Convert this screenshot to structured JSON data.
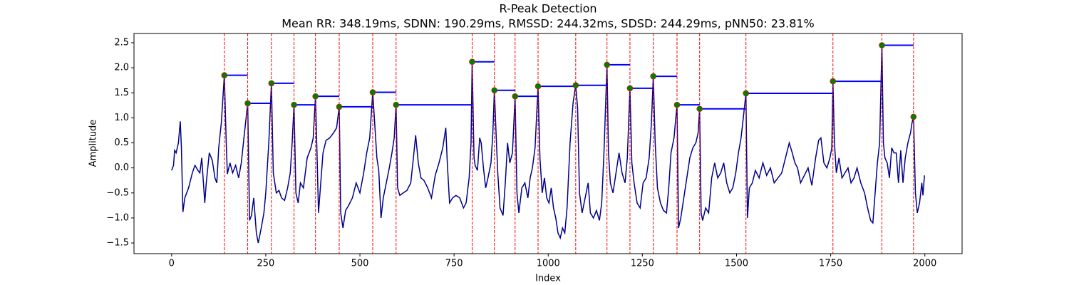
{
  "chart_data": {
    "type": "line",
    "title": "R-Peak Detection",
    "subtitle": "Mean RR: 348.19ms, SDNN: 190.29ms, RMSSD: 244.32ms, SDSD: 244.29ms, pNN50: 23.81%",
    "xlabel": "Index",
    "ylabel": "Amplitude",
    "xlim": [
      -99.95,
      2098.95
    ],
    "ylim": [
      -1.713,
      2.685
    ],
    "xticks": [
      0,
      250,
      500,
      750,
      1000,
      1250,
      1500,
      1750,
      2000
    ],
    "yticks": [
      {
        "value": -1.5,
        "label": "−1.5"
      },
      {
        "value": -1,
        "label": "−1.0"
      },
      {
        "value": -0.5,
        "label": "−0.5"
      },
      {
        "value": 0,
        "label": "0.0"
      },
      0.5,
      {
        "value": 1,
        "label": "1.0"
      },
      1.5,
      {
        "value": 2,
        "label": "2.0"
      },
      2.5
    ],
    "peak_line_color": "#ff0000",
    "rr_line_color": "#0000ff",
    "marker_edge_color": "#ff0000",
    "series": [
      {
        "color": "#00008b",
        "x": [
          0,
          5,
          8,
          12,
          18,
          23,
          26,
          30,
          35,
          45,
          55,
          62,
          70,
          75,
          80,
          88,
          92,
          100,
          108,
          115,
          120,
          125,
          132,
          140,
          145,
          148,
          155,
          162,
          170,
          178,
          185,
          192,
          202,
          207,
          212,
          218,
          225,
          230,
          238,
          245,
          250,
          258,
          265,
          270,
          278,
          285,
          292,
          300,
          308,
          315,
          320,
          325,
          330,
          336,
          342,
          350,
          360,
          370,
          376,
          382,
          386,
          390,
          396,
          402,
          410,
          420,
          430,
          438,
          445,
          449,
          455,
          462,
          470,
          480,
          490,
          500,
          510,
          518,
          526,
          534,
          540,
          545,
          550,
          556,
          562,
          570,
          578,
          585,
          591,
          596,
          600,
          606,
          615,
          625,
          635,
          642,
          648,
          655,
          662,
          670,
          680,
          690,
          700,
          710,
          720,
          728,
          732,
          738,
          746,
          755,
          765,
          775,
          782,
          790,
          795,
          798,
          803,
          806,
          812,
          818,
          822,
          828,
          834,
          840,
          848,
          853,
          857,
          862,
          866,
          872,
          880,
          886,
          892,
          898,
          905,
          912,
          917,
          922,
          930,
          938,
          946,
          952,
          958,
          965,
          973,
          978,
          984,
          990,
          996,
          1002,
          1008,
          1014,
          1020,
          1026,
          1032,
          1038,
          1044,
          1050,
          1058,
          1066,
          1073,
          1078,
          1083,
          1090,
          1098,
          1106,
          1112,
          1120,
          1128,
          1136,
          1142,
          1148,
          1156,
          1160,
          1165,
          1172,
          1180,
          1188,
          1196,
          1204,
          1210,
          1217,
          1222,
          1228,
          1236,
          1244,
          1252,
          1260,
          1268,
          1274,
          1279,
          1284,
          1290,
          1298,
          1306,
          1314,
          1320,
          1326,
          1334,
          1342,
          1346,
          1352,
          1360,
          1368,
          1376,
          1384,
          1392,
          1398,
          1402,
          1406,
          1410,
          1418,
          1426,
          1434,
          1442,
          1450,
          1458,
          1466,
          1474,
          1482,
          1490,
          1498,
          1505,
          1512,
          1518,
          1525,
          1529,
          1534,
          1542,
          1550,
          1560,
          1570,
          1580,
          1590,
          1600,
          1610,
          1620,
          1630,
          1640,
          1648,
          1655,
          1662,
          1670,
          1680,
          1690,
          1700,
          1710,
          1718,
          1724,
          1732,
          1740,
          1748,
          1753,
          1756,
          1760,
          1765,
          1772,
          1780,
          1788,
          1796,
          1804,
          1812,
          1820,
          1830,
          1840,
          1848,
          1856,
          1862,
          1868,
          1874,
          1880,
          1886,
          1890,
          1894,
          1900,
          1906,
          1912,
          1918,
          1924,
          1930,
          1936,
          1942,
          1948,
          1955,
          1962,
          1966,
          1970,
          1975,
          1980,
          1986,
          1992,
          1995,
          1999
        ],
        "values": [
          -0.05,
          0.05,
          0.35,
          0.3,
          0.5,
          0.93,
          0.4,
          -0.88,
          -0.6,
          -0.4,
          -0.1,
          0.05,
          -0.05,
          -0.1,
          0.2,
          -0.7,
          -0.3,
          0.3,
          0.15,
          -0.2,
          -0.3,
          0.4,
          0.9,
          1.85,
          0.5,
          -0.12,
          0.1,
          -0.1,
          0.05,
          -0.2,
          0.1,
          0.6,
          1.29,
          -1.05,
          -0.95,
          -0.6,
          -1.3,
          -1.5,
          -1.2,
          -0.9,
          -0.5,
          0.5,
          1.69,
          -0.1,
          -0.5,
          -0.45,
          -0.6,
          -0.65,
          -0.4,
          -0.1,
          0.5,
          1.26,
          -0.5,
          -0.7,
          -0.3,
          -0.4,
          0.2,
          0.4,
          0.6,
          1.43,
          0.3,
          -0.9,
          -0.3,
          0.3,
          0.55,
          0.6,
          0.7,
          0.8,
          1.22,
          -0.9,
          -1.2,
          -0.85,
          -0.75,
          -0.6,
          -0.3,
          -0.5,
          -0.1,
          0.3,
          0.6,
          1.51,
          0.8,
          0.2,
          -0.05,
          -1.0,
          -0.6,
          -0.3,
          0.0,
          0.3,
          0.6,
          1.26,
          -0.4,
          -0.55,
          -0.5,
          -0.45,
          -0.3,
          0.2,
          0.65,
          0.1,
          -0.2,
          -0.25,
          -0.4,
          -0.6,
          -0.15,
          0.1,
          0.4,
          0.8,
          0.1,
          -0.7,
          -0.6,
          -0.55,
          -0.6,
          -0.8,
          -0.7,
          -0.2,
          0.5,
          2.12,
          0.2,
          0.05,
          -0.05,
          0.6,
          0.5,
          0.0,
          -0.4,
          -0.2,
          0.1,
          0.7,
          1.55,
          0.6,
          -0.1,
          -0.8,
          -0.95,
          -0.3,
          0.5,
          0.1,
          0.3,
          1.43,
          -0.5,
          -0.9,
          -0.4,
          -0.3,
          -0.6,
          -0.2,
          0.0,
          0.4,
          1.63,
          0.2,
          -0.5,
          -0.2,
          -0.6,
          -0.7,
          -0.4,
          -0.8,
          -1.0,
          -1.3,
          -1.4,
          -1.2,
          -1.3,
          -0.8,
          0.5,
          1.3,
          1.65,
          1.2,
          -0.5,
          -0.9,
          -0.6,
          -0.3,
          -0.9,
          -1.0,
          -0.85,
          -1.05,
          -0.7,
          0.3,
          2.06,
          0.3,
          -0.3,
          -0.5,
          -0.1,
          0.3,
          -0.1,
          -0.3,
          0.2,
          1.59,
          0.1,
          -0.3,
          -0.7,
          -0.8,
          -0.3,
          -0.2,
          0.2,
          0.9,
          1.83,
          0.5,
          -0.4,
          -0.7,
          -0.85,
          -0.9,
          -0.4,
          0.3,
          0.6,
          1.26,
          -1.2,
          -1.0,
          -0.6,
          -0.2,
          0.2,
          0.4,
          0.5,
          0.7,
          1.18,
          -0.9,
          -1.05,
          -0.8,
          -0.9,
          -0.2,
          0.1,
          -0.2,
          -0.1,
          0.1,
          -0.3,
          -0.5,
          -0.4,
          -0.1,
          0.3,
          0.6,
          1.0,
          1.49,
          -1.0,
          -0.4,
          -0.3,
          -0.05,
          -0.2,
          0.1,
          -0.15,
          0.0,
          -0.3,
          -0.2,
          -0.1,
          0.2,
          0.5,
          0.3,
          0.1,
          0.0,
          -0.3,
          -0.15,
          0.0,
          -0.35,
          0.2,
          0.55,
          0.6,
          0.1,
          0.0,
          0.2,
          0.4,
          1.73,
          0.5,
          -0.1,
          0.2,
          -0.2,
          -0.1,
          0.0,
          -0.3,
          -0.2,
          0.0,
          -0.3,
          -0.5,
          -0.8,
          -1.05,
          -1.1,
          -0.5,
          0.1,
          0.5,
          2.45,
          0.5,
          0.2,
          0.1,
          -0.2,
          0.4,
          0.3,
          0.3,
          -0.3,
          0.35,
          -0.3,
          0.2,
          0.5,
          0.7,
          0.9,
          1.02,
          -0.5,
          -0.9,
          -0.7,
          -0.3,
          -0.55,
          -0.15
        ]
      },
      {
        "type": "scatter",
        "color": "#008000",
        "x": [
          140,
          202,
          265,
          325,
          382,
          445,
          534,
          596,
          798,
          857,
          912,
          973,
          1073,
          1156,
          1217,
          1279,
          1342,
          1402,
          1525,
          1756,
          1886,
          1970
        ],
        "values": [
          1.85,
          1.29,
          1.69,
          1.26,
          1.43,
          1.22,
          1.51,
          1.26,
          2.12,
          1.55,
          1.43,
          1.63,
          1.65,
          2.06,
          1.59,
          1.83,
          1.26,
          1.18,
          1.49,
          1.73,
          2.45,
          1.02
        ]
      }
    ]
  }
}
